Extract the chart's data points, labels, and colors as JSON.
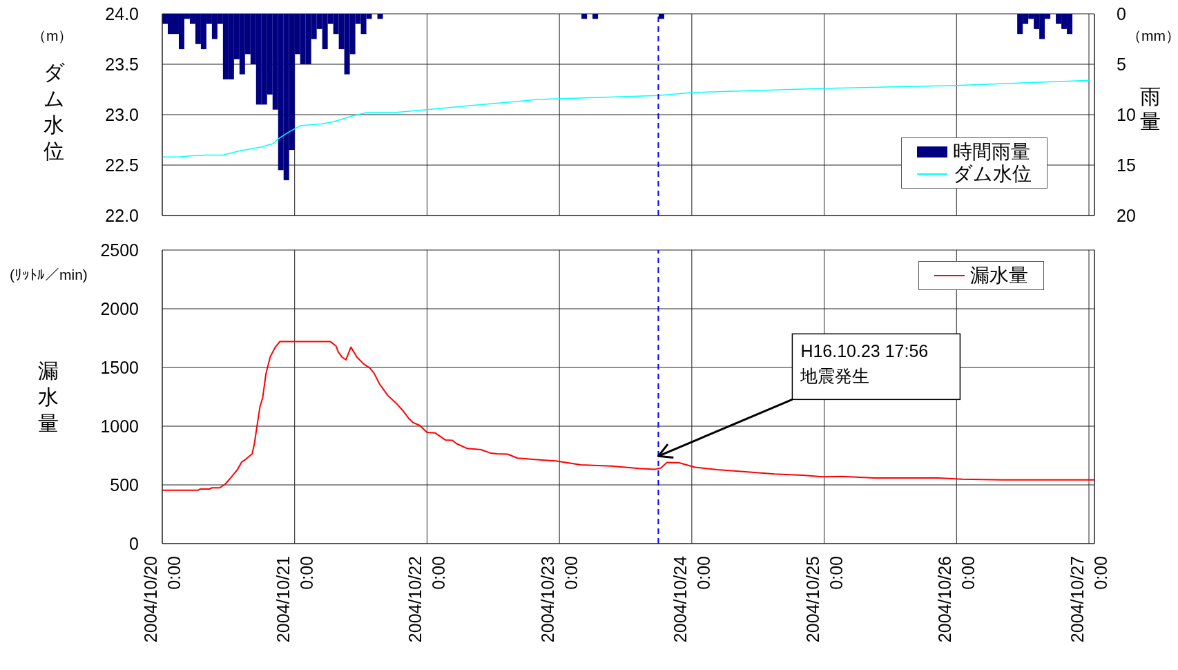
{
  "chart_data": [
    {
      "type": "line",
      "ylabel": "ダム水位",
      "y2label": "雨量",
      "annotations": [
        "（m）",
        "（mm）"
      ],
      "xlim": [
        "2004-10-20T00:00",
        "2004-10-27T01:00"
      ],
      "xticks": [
        {
          "value": "2004-10-20T00:00",
          "label": null
        },
        {
          "value": "2004-10-21T00:00",
          "label": null
        },
        {
          "value": "2004-10-22T00:00",
          "label": null
        },
        {
          "value": "2004-10-23T00:00",
          "label": null
        },
        {
          "value": "2004-10-24T00:00",
          "label": null
        },
        {
          "value": "2004-10-25T00:00",
          "label": null
        },
        {
          "value": "2004-10-26T00:00",
          "label": null
        },
        {
          "value": "2004-10-27T00:00",
          "label": null
        }
      ],
      "ylim": [
        22,
        24
      ],
      "yticks": [
        {
          "value": 22,
          "label": "22.0"
        },
        {
          "value": 22.5,
          "label": "22.5"
        },
        {
          "value": 23,
          "label": "23.0"
        },
        {
          "value": 23.5,
          "label": "23.5"
        },
        {
          "value": 24,
          "label": "24.0"
        }
      ],
      "y2lim": [
        20,
        0
      ],
      "y2ticks": [
        0,
        5,
        10,
        15,
        20
      ],
      "tick_labels": "y",
      "grid": true,
      "legend": "bottom right",
      "ref_lines": [
        {
          "axis": "x",
          "value": "2004-10-23T17:56",
          "color": "#0000ff",
          "line_style": "dashed"
        }
      ],
      "series": [
        {
          "name": "時間雨量",
          "type": "bar",
          "axis": "y2",
          "color": "#000080",
          "x": [
            "2004-10-20T00:30",
            "2004-10-20T01:30",
            "2004-10-20T02:30",
            "2004-10-20T03:30",
            "2004-10-20T04:30",
            "2004-10-20T05:30",
            "2004-10-20T06:30",
            "2004-10-20T07:30",
            "2004-10-20T08:30",
            "2004-10-20T09:30",
            "2004-10-20T10:30",
            "2004-10-20T11:30",
            "2004-10-20T12:30",
            "2004-10-20T13:30",
            "2004-10-20T14:30",
            "2004-10-20T15:30",
            "2004-10-20T16:30",
            "2004-10-20T17:30",
            "2004-10-20T18:30",
            "2004-10-20T19:30",
            "2004-10-20T20:30",
            "2004-10-20T21:30",
            "2004-10-20T22:30",
            "2004-10-20T23:30",
            "2004-10-21T00:30",
            "2004-10-21T01:30",
            "2004-10-21T02:30",
            "2004-10-21T03:30",
            "2004-10-21T04:30",
            "2004-10-21T05:30",
            "2004-10-21T06:30",
            "2004-10-21T07:30",
            "2004-10-21T08:30",
            "2004-10-21T09:30",
            "2004-10-21T10:30",
            "2004-10-21T11:30",
            "2004-10-21T12:30",
            "2004-10-21T13:30",
            "2004-10-21T15:30",
            "2004-10-23T04:30",
            "2004-10-23T06:30",
            "2004-10-23T18:30",
            "2004-10-26T11:30",
            "2004-10-26T12:30",
            "2004-10-26T13:30",
            "2004-10-26T14:30",
            "2004-10-26T15:30",
            "2004-10-26T16:30",
            "2004-10-26T18:30",
            "2004-10-26T19:30",
            "2004-10-26T20:30"
          ],
          "values": [
            1,
            2,
            2,
            3.5,
            0.5,
            1,
            3,
            3.5,
            1,
            2.5,
            1,
            6.5,
            6.5,
            4.5,
            6,
            4,
            5,
            9,
            9,
            8,
            9.5,
            15.5,
            16.5,
            13.5,
            4,
            5,
            5,
            2.5,
            1.5,
            3.5,
            1,
            2,
            3.5,
            6,
            4,
            1,
            2,
            0.5,
            0.5,
            0.5,
            0.5,
            0.5,
            2,
            1,
            0.5,
            1.5,
            2.5,
            0.5,
            1,
            1.5,
            2
          ]
        },
        {
          "name": "ダム水位",
          "axis": "y",
          "color": "#00ffff",
          "x": [
            "2004-10-20T00:00",
            "2004-10-20T03:00",
            "2004-10-20T05:00",
            "2004-10-20T08:00",
            "2004-10-20T11:00",
            "2004-10-20T14:00",
            "2004-10-20T18:00",
            "2004-10-20T20:00",
            "2004-10-20T21:00",
            "2004-10-20T23:00",
            "2004-10-21T01:00",
            "2004-10-21T05:00",
            "2004-10-21T07:00",
            "2004-10-21T10:00",
            "2004-10-21T13:00",
            "2004-10-21T18:00",
            "2004-10-22T00:00",
            "2004-10-22T08:00",
            "2004-10-22T14:00",
            "2004-10-22T20:00",
            "2004-10-23T18:00",
            "2004-10-24T00:00",
            "2004-10-25T00:00",
            "2004-10-26T00:00",
            "2004-10-27T00:00"
          ],
          "values": [
            22.58,
            22.58,
            22.59,
            22.6,
            22.6,
            22.64,
            22.68,
            22.71,
            22.76,
            22.83,
            22.89,
            22.91,
            22.93,
            22.98,
            23.02,
            23.02,
            23.05,
            23.09,
            23.12,
            23.15,
            23.19,
            23.22,
            23.26,
            23.29,
            23.34
          ]
        }
      ]
    },
    {
      "type": "line",
      "ylabel": "漏水量",
      "annotations": [
        "(ﾘｯﾄﾙ／min)",
        {
          "text": "H16.10.23 17:56\n地震発生",
          "x": "2004-10-23T17:56",
          "y": 745
        }
      ],
      "xlim": [
        "2004-10-20T00:00",
        "2004-10-27T01:00"
      ],
      "xticks": [
        {
          "value": "2004-10-20T00:00",
          "label": "2004/10/20 0:00"
        },
        {
          "value": "2004-10-21T00:00",
          "label": "2004/10/21 0:00"
        },
        {
          "value": "2004-10-22T00:00",
          "label": "2004/10/22 0:00"
        },
        {
          "value": "2004-10-23T00:00",
          "label": "2004/10/23 0:00"
        },
        {
          "value": "2004-10-24T00:00",
          "label": "2004/10/24 0:00"
        },
        {
          "value": "2004-10-25T00:00",
          "label": "2004/10/25 0:00"
        },
        {
          "value": "2004-10-26T00:00",
          "label": "2004/10/26 0:00"
        },
        {
          "value": "2004-10-27T00:00",
          "label": "2004/10/27 0:00"
        }
      ],
      "ylim": [
        0,
        2500
      ],
      "yticks": [
        0,
        500,
        1000,
        1500,
        2000,
        2500
      ],
      "grid": true,
      "legend": "top right",
      "ref_lines": [
        {
          "axis": "x",
          "value": "2004-10-23T17:56",
          "color": "#0000ff",
          "line_style": "dashed"
        }
      ],
      "series": [
        {
          "name": "漏水量",
          "color": "#ff0000",
          "x": [
            "2004-10-20T00:00",
            "2004-10-20T06:30",
            "2004-10-20T06:54",
            "2004-10-20T08:36",
            "2004-10-20T09:00",
            "2004-10-20T10:24",
            "2004-10-20T11:24",
            "2004-10-20T12:30",
            "2004-10-20T13:36",
            "2004-10-20T14:24",
            "2004-10-20T15:12",
            "2004-10-20T16:18",
            "2004-10-20T16:42",
            "2004-10-20T17:06",
            "2004-10-20T17:42",
            "2004-10-20T18:12",
            "2004-10-20T18:48",
            "2004-10-20T19:36",
            "2004-10-20T20:30",
            "2004-10-20T21:18",
            "2004-10-21T06:30",
            "2004-10-21T07:30",
            "2004-10-21T07:54",
            "2004-10-21T08:36",
            "2004-10-21T09:18",
            "2004-10-21T10:12",
            "2004-10-21T11:18",
            "2004-10-21T12:30",
            "2004-10-21T13:36",
            "2004-10-21T14:24",
            "2004-10-21T15:24",
            "2004-10-21T16:54",
            "2004-10-21T18:24",
            "2004-10-21T19:36",
            "2004-10-21T20:42",
            "2004-10-21T21:30",
            "2004-10-21T22:42",
            "2004-10-22T00:00",
            "2004-10-22T01:30",
            "2004-10-22T03:18",
            "2004-10-22T04:36",
            "2004-10-22T05:24",
            "2004-10-22T07:18",
            "2004-10-22T08:48",
            "2004-10-22T09:48",
            "2004-10-22T11:30",
            "2004-10-22T12:42",
            "2004-10-22T14:36",
            "2004-10-22T16:24",
            "2004-10-22T20:48",
            "2004-10-22T23:18",
            "2004-10-23T03:54",
            "2004-10-23T09:24",
            "2004-10-23T14:30",
            "2004-10-23T17:18",
            "2004-10-23T18:24",
            "2004-10-23T19:30",
            "2004-10-23T21:42",
            "2004-10-24T00:36",
            "2004-10-24T04:36",
            "2004-10-24T08:30",
            "2004-10-24T15:00",
            "2004-10-24T20:06",
            "2004-10-24T23:42",
            "2004-10-25T03:18",
            "2004-10-25T09:06",
            "2004-10-25T20:42",
            "2004-10-26T01:00",
            "2004-10-26T08:18",
            "2004-10-26T16:54",
            "2004-10-27T01:00"
          ],
          "values": [
            455,
            455,
            465,
            465,
            475,
            475,
            506,
            565,
            628,
            695,
            720,
            765,
            850,
            977,
            1163,
            1241,
            1447,
            1594,
            1673,
            1720,
            1720,
            1682,
            1633,
            1588,
            1565,
            1673,
            1588,
            1530,
            1496,
            1451,
            1359,
            1261,
            1196,
            1134,
            1065,
            1030,
            1006,
            947,
            942,
            883,
            879,
            850,
            810,
            804,
            800,
            771,
            765,
            762,
            728,
            712,
            705,
            671,
            661,
            640,
            633,
            644,
            691,
            688,
            650,
            630,
            616,
            593,
            583,
            569,
            572,
            559,
            559,
            549,
            542,
            542,
            542
          ]
        }
      ]
    }
  ]
}
